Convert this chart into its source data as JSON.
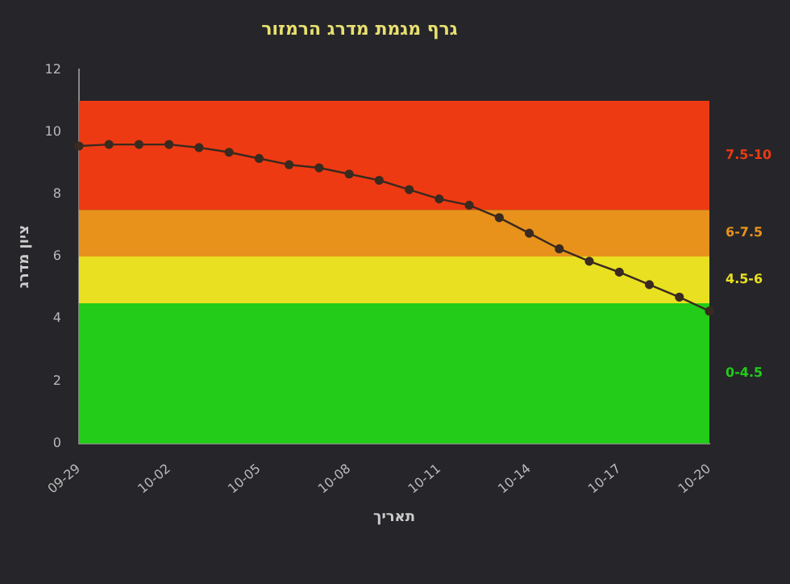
{
  "chart_data": {
    "type": "line",
    "title": "גרף מגמת מדרג הרמזור",
    "xlabel": "תאריך",
    "ylabel": "ציון מדרג",
    "categories": [
      "09-29",
      null,
      null,
      "10-02",
      null,
      null,
      "10-05",
      null,
      null,
      "10-08",
      null,
      null,
      "10-11",
      null,
      null,
      "10-14",
      null,
      null,
      "10-17",
      null,
      null,
      "10-20"
    ],
    "series": [
      {
        "color": "#3a2a20",
        "values": [
          9.55,
          9.6,
          9.6,
          9.6,
          9.5,
          9.35,
          9.15,
          8.95,
          8.85,
          8.65,
          8.45,
          8.15,
          7.85,
          7.65,
          7.25,
          6.75,
          6.25,
          5.85,
          5.5,
          5.1,
          4.7,
          4.25
        ]
      }
    ],
    "ylim": [
      0,
      12
    ],
    "yticks": [
      0,
      2,
      4,
      6,
      8,
      10,
      12
    ],
    "grid": false,
    "legend": false,
    "marker": "circle",
    "line_style": "solid",
    "bands": [
      {
        "axis": "y",
        "from": 7.5,
        "to": 11,
        "label": "7.5-10",
        "color": "#ee3a12"
      },
      {
        "axis": "y",
        "from": 6,
        "to": 7.5,
        "label": "6-7.5",
        "color": "#e8921c"
      },
      {
        "axis": "y",
        "from": 4.5,
        "to": 6,
        "label": "4.5-6",
        "color": "#e8e020"
      },
      {
        "axis": "y",
        "from": 0,
        "to": 4.5,
        "label": "0-4.5",
        "color": "#22cc18"
      }
    ]
  }
}
